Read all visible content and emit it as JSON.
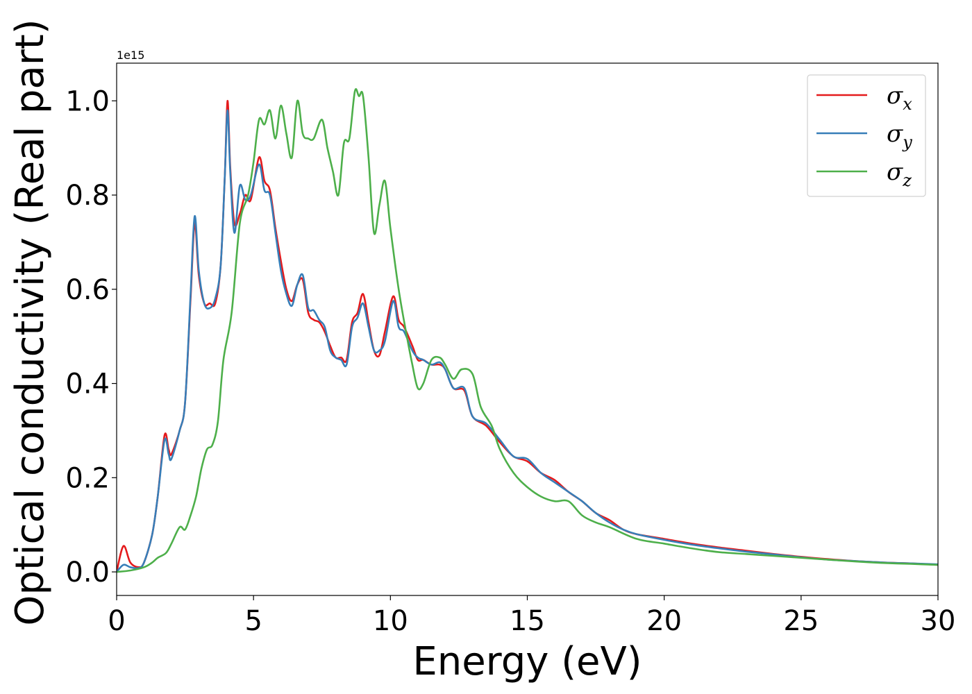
{
  "chart_data": {
    "type": "line",
    "xlabel": "Energy (eV)",
    "ylabel": "Optical conductivity (Real part)",
    "y_offset_text": "1e15",
    "xlim": [
      0,
      30
    ],
    "ylim": [
      -0.05,
      1.08
    ],
    "x_ticks": [
      0,
      5,
      10,
      15,
      20,
      25,
      30
    ],
    "x_tick_labels": [
      "0",
      "5",
      "10",
      "15",
      "20",
      "25",
      "30"
    ],
    "y_ticks": [
      0.0,
      0.2,
      0.4,
      0.6,
      0.8,
      1.0
    ],
    "y_tick_labels": [
      "0.0",
      "0.2",
      "0.4",
      "0.6",
      "0.8",
      "1.0"
    ],
    "grid": false,
    "legend_position": "top-right",
    "series": [
      {
        "name": "σx",
        "symbol": "σ",
        "subscript": "x",
        "color": "#e41a1c",
        "x": [
          0,
          0.25,
          0.5,
          0.8,
          1.0,
          1.3,
          1.5,
          1.75,
          1.9,
          2.0,
          2.3,
          2.5,
          2.7,
          2.85,
          3.0,
          3.2,
          3.4,
          3.6,
          3.8,
          3.95,
          4.05,
          4.15,
          4.3,
          4.5,
          4.7,
          4.9,
          5.2,
          5.4,
          5.6,
          5.8,
          6.0,
          6.2,
          6.4,
          6.6,
          6.8,
          7.0,
          7.2,
          7.4,
          7.6,
          7.8,
          8.0,
          8.2,
          8.4,
          8.6,
          8.8,
          9.0,
          9.2,
          9.4,
          9.6,
          9.8,
          10.1,
          10.3,
          10.5,
          10.8,
          11.0,
          11.2,
          11.5,
          11.8,
          12.0,
          12.3,
          12.7,
          13.0,
          13.5,
          14.0,
          14.5,
          15.0,
          15.5,
          16.0,
          16.5,
          17.0,
          17.5,
          18.0,
          18.5,
          19.0,
          20.0,
          21.0,
          22.0,
          23.0,
          24.0,
          25.0,
          26.0,
          27.0,
          28.0,
          29.0,
          30.0
        ],
        "y": [
          0.0,
          0.055,
          0.02,
          0.01,
          0.02,
          0.08,
          0.16,
          0.29,
          0.26,
          0.25,
          0.3,
          0.36,
          0.58,
          0.74,
          0.63,
          0.57,
          0.57,
          0.57,
          0.65,
          0.84,
          1.0,
          0.86,
          0.74,
          0.76,
          0.8,
          0.79,
          0.88,
          0.83,
          0.81,
          0.73,
          0.66,
          0.6,
          0.575,
          0.61,
          0.62,
          0.55,
          0.535,
          0.53,
          0.51,
          0.48,
          0.455,
          0.455,
          0.45,
          0.53,
          0.55,
          0.59,
          0.53,
          0.47,
          0.46,
          0.51,
          0.585,
          0.535,
          0.52,
          0.48,
          0.45,
          0.45,
          0.44,
          0.44,
          0.43,
          0.39,
          0.385,
          0.33,
          0.31,
          0.275,
          0.245,
          0.235,
          0.21,
          0.195,
          0.17,
          0.15,
          0.125,
          0.11,
          0.09,
          0.08,
          0.07,
          0.06,
          0.052,
          0.045,
          0.038,
          0.032,
          0.027,
          0.023,
          0.02,
          0.018,
          0.015
        ]
      },
      {
        "name": "σy",
        "symbol": "σ",
        "subscript": "y",
        "color": "#377eb8",
        "x": [
          0,
          0.25,
          0.5,
          0.8,
          1.0,
          1.3,
          1.5,
          1.75,
          1.9,
          2.0,
          2.3,
          2.5,
          2.7,
          2.85,
          3.0,
          3.2,
          3.4,
          3.6,
          3.8,
          3.95,
          4.05,
          4.15,
          4.3,
          4.5,
          4.7,
          4.9,
          5.2,
          5.4,
          5.6,
          5.8,
          6.0,
          6.2,
          6.4,
          6.6,
          6.8,
          7.0,
          7.2,
          7.4,
          7.6,
          7.8,
          8.0,
          8.2,
          8.4,
          8.6,
          8.8,
          9.0,
          9.2,
          9.4,
          9.6,
          9.8,
          10.1,
          10.3,
          10.5,
          10.8,
          11.0,
          11.2,
          11.5,
          11.8,
          12.0,
          12.3,
          12.7,
          13.0,
          13.5,
          14.0,
          14.5,
          15.0,
          15.5,
          16.0,
          16.5,
          17.0,
          17.5,
          18.0,
          18.5,
          19.0,
          20.0,
          21.0,
          22.0,
          23.0,
          24.0,
          25.0,
          26.0,
          27.0,
          28.0,
          29.0,
          30.0
        ],
        "y": [
          0.0,
          0.015,
          0.01,
          0.008,
          0.02,
          0.08,
          0.16,
          0.28,
          0.25,
          0.24,
          0.3,
          0.36,
          0.59,
          0.755,
          0.64,
          0.57,
          0.56,
          0.58,
          0.65,
          0.84,
          0.98,
          0.85,
          0.72,
          0.82,
          0.79,
          0.8,
          0.865,
          0.81,
          0.8,
          0.72,
          0.64,
          0.59,
          0.565,
          0.61,
          0.63,
          0.56,
          0.555,
          0.535,
          0.52,
          0.47,
          0.455,
          0.45,
          0.44,
          0.52,
          0.54,
          0.57,
          0.52,
          0.47,
          0.47,
          0.49,
          0.575,
          0.52,
          0.51,
          0.47,
          0.455,
          0.45,
          0.44,
          0.445,
          0.43,
          0.39,
          0.39,
          0.33,
          0.315,
          0.28,
          0.245,
          0.24,
          0.21,
          0.19,
          0.17,
          0.15,
          0.125,
          0.105,
          0.09,
          0.08,
          0.068,
          0.058,
          0.05,
          0.043,
          0.037,
          0.031,
          0.026,
          0.023,
          0.02,
          0.018,
          0.016
        ]
      },
      {
        "name": "σz",
        "symbol": "σ",
        "subscript": "z",
        "color": "#4daf4a",
        "x": [
          0,
          0.5,
          1.0,
          1.3,
          1.5,
          1.8,
          2.0,
          2.3,
          2.5,
          2.7,
          2.9,
          3.1,
          3.3,
          3.5,
          3.7,
          3.9,
          4.2,
          4.5,
          4.8,
          5.0,
          5.2,
          5.4,
          5.6,
          5.8,
          6.0,
          6.2,
          6.4,
          6.6,
          6.8,
          7.0,
          7.2,
          7.5,
          7.7,
          7.9,
          8.1,
          8.3,
          8.5,
          8.7,
          8.85,
          9.0,
          9.2,
          9.4,
          9.6,
          9.8,
          10.0,
          10.3,
          10.6,
          10.8,
          11.0,
          11.2,
          11.5,
          11.8,
          12.0,
          12.3,
          12.6,
          13.0,
          13.3,
          13.7,
          14.0,
          14.5,
          15.0,
          15.5,
          16.0,
          16.5,
          17.0,
          17.5,
          18.0,
          19.0,
          20.0,
          21.0,
          22.0,
          23.0,
          24.0,
          25.0,
          26.0,
          27.0,
          28.0,
          29.0,
          30.0
        ],
        "y": [
          0.0,
          0.003,
          0.01,
          0.02,
          0.03,
          0.04,
          0.06,
          0.095,
          0.09,
          0.12,
          0.16,
          0.22,
          0.26,
          0.27,
          0.32,
          0.45,
          0.55,
          0.74,
          0.8,
          0.87,
          0.96,
          0.95,
          0.98,
          0.92,
          0.99,
          0.93,
          0.88,
          1.0,
          0.93,
          0.92,
          0.92,
          0.96,
          0.9,
          0.85,
          0.8,
          0.91,
          0.92,
          1.02,
          1.01,
          1.01,
          0.88,
          0.72,
          0.78,
          0.83,
          0.73,
          0.6,
          0.5,
          0.44,
          0.39,
          0.4,
          0.45,
          0.455,
          0.44,
          0.41,
          0.43,
          0.42,
          0.35,
          0.31,
          0.26,
          0.21,
          0.18,
          0.16,
          0.15,
          0.15,
          0.12,
          0.105,
          0.095,
          0.07,
          0.06,
          0.05,
          0.042,
          0.038,
          0.034,
          0.03,
          0.026,
          0.022,
          0.019,
          0.017,
          0.015
        ]
      }
    ]
  }
}
